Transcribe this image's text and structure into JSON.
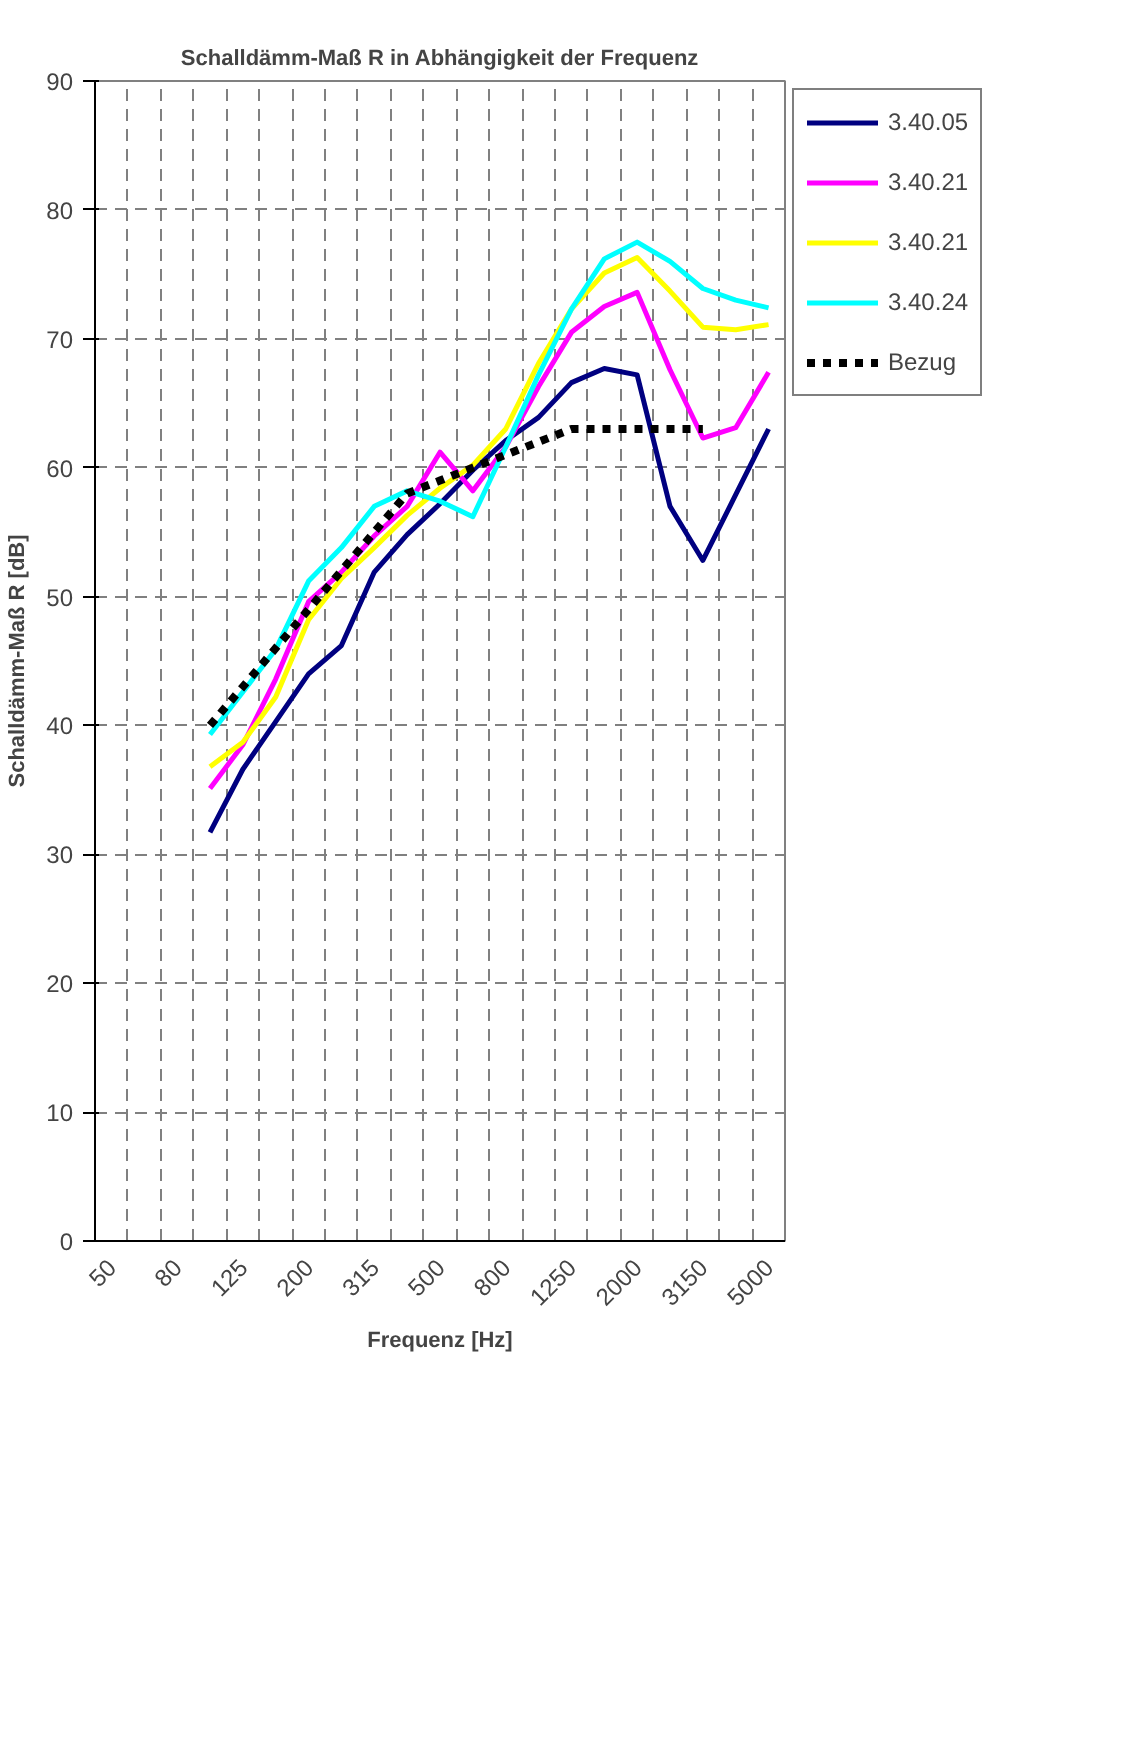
{
  "chart_data": {
    "type": "line",
    "title": "Schalldämm-Maß R in Abhängigkeit der Frequenz",
    "xlabel": "Frequenz [Hz]",
    "ylabel": "Schalldämm-Maß R [dB]",
    "categories": [
      "50",
      null,
      "80",
      null,
      "125",
      null,
      "200",
      null,
      "315",
      null,
      "500",
      null,
      "800",
      null,
      "1250",
      null,
      "2000",
      null,
      "3150",
      null,
      "5000"
    ],
    "ylim": [
      0,
      90
    ],
    "yticks": [
      0,
      10,
      20,
      30,
      40,
      50,
      60,
      70,
      80,
      90
    ],
    "grid": true,
    "legend": "right",
    "series": [
      {
        "name": "3.40.05",
        "color": "#000080",
        "values": [
          null,
          null,
          null,
          31.7,
          36.6,
          40.3,
          44.0,
          46.2,
          51.9,
          54.8,
          57.2,
          59.8,
          62.1,
          63.9,
          66.6,
          67.7,
          67.2,
          57.0,
          52.8,
          57.9,
          63.0
        ]
      },
      {
        "name": "3.40.21",
        "color": "#ff00ff",
        "values": [
          null,
          null,
          null,
          35.1,
          38.5,
          43.6,
          49.6,
          51.9,
          54.7,
          57.0,
          61.2,
          58.2,
          61.6,
          66.3,
          70.5,
          72.5,
          73.6,
          67.6,
          62.3,
          63.1,
          67.4
        ]
      },
      {
        "name": "3.40.21",
        "color": "#ffff00",
        "values": [
          null,
          null,
          null,
          36.8,
          38.7,
          42.2,
          48.2,
          51.4,
          53.8,
          56.3,
          58.4,
          60.2,
          63.0,
          68.1,
          72.3,
          75.1,
          76.3,
          73.7,
          70.9,
          70.7,
          71.1
        ]
      },
      {
        "name": "3.40.24",
        "color": "#00ffff",
        "values": [
          null,
          null,
          null,
          39.3,
          42.6,
          45.9,
          51.2,
          53.8,
          57.0,
          58.2,
          57.4,
          56.2,
          61.6,
          67.2,
          72.3,
          76.2,
          77.5,
          76.0,
          73.9,
          73.0,
          72.4
        ]
      },
      {
        "name": "Bezug",
        "color": "#000000",
        "line_style": "dotted",
        "values": [
          null,
          null,
          null,
          40,
          43,
          46,
          49,
          52,
          55,
          58,
          59,
          60,
          61,
          62,
          63,
          63,
          63,
          63,
          63,
          null,
          null
        ]
      }
    ]
  }
}
